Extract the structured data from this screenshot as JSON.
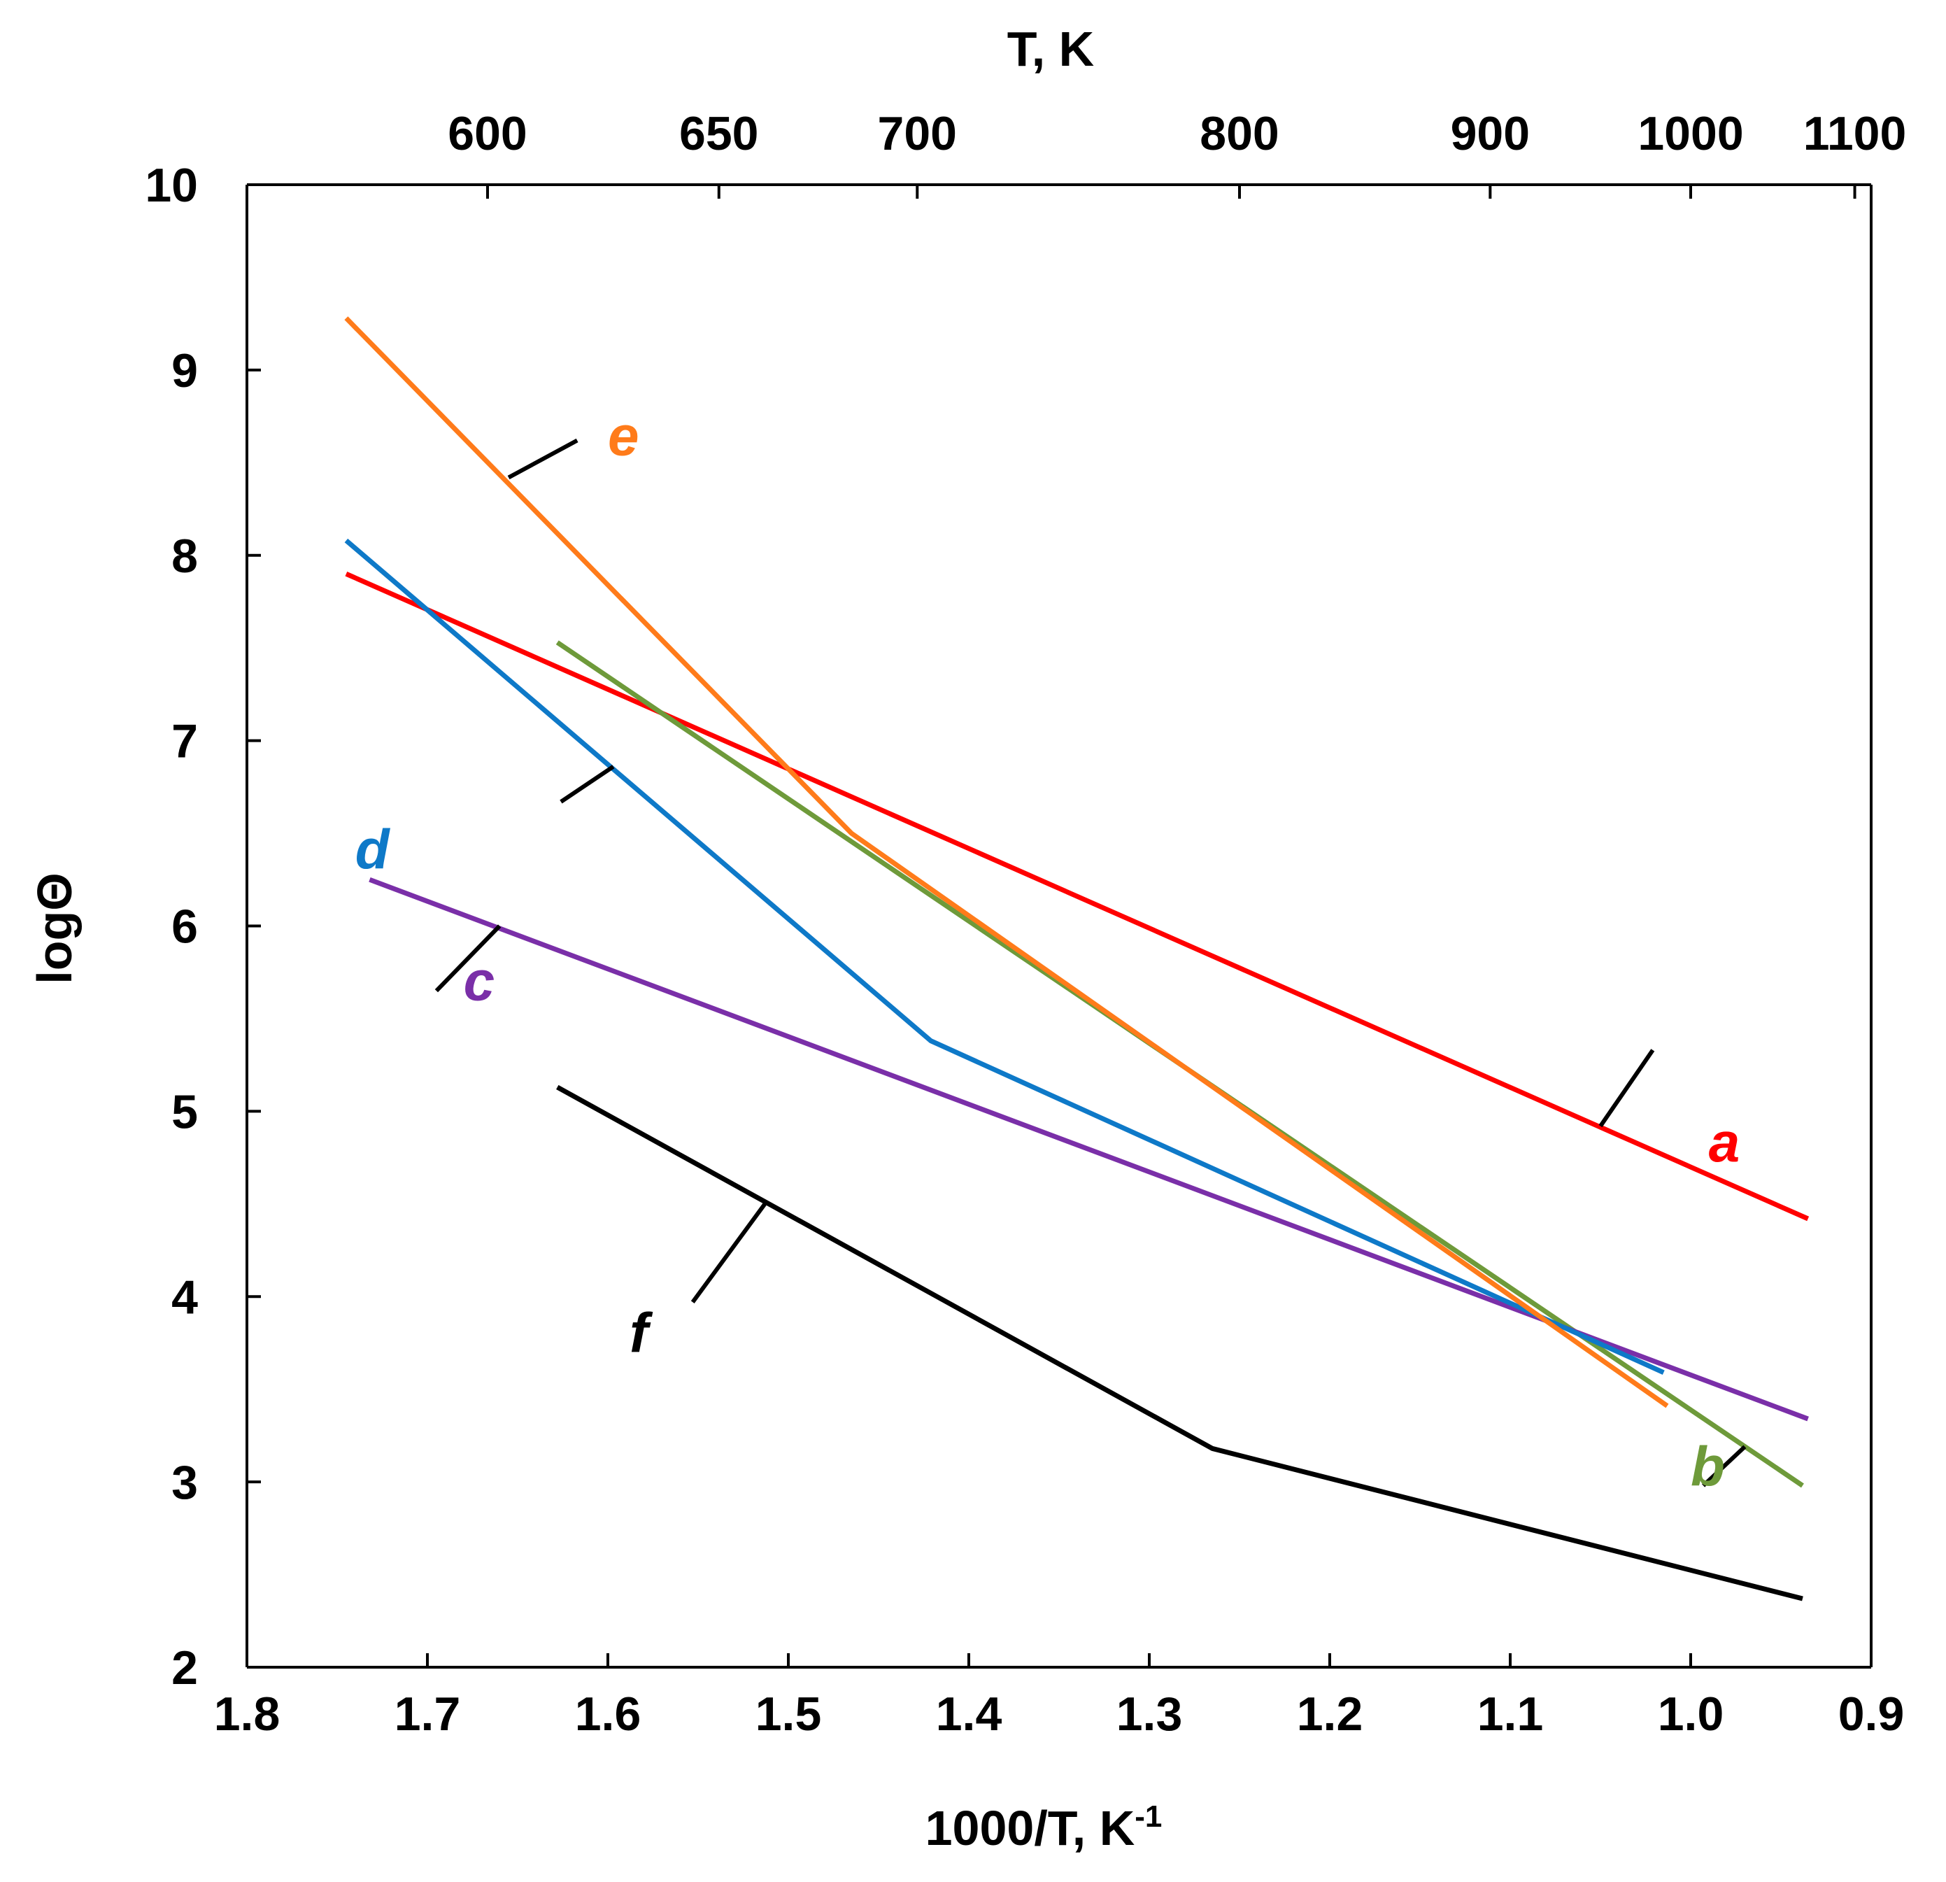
{
  "chart_data": {
    "type": "line",
    "xlabel": "1000/T, K",
    "xlabel_sup": "-1",
    "ylabel": "logΘ",
    "x2label": "T, K",
    "xlim": [
      1.8,
      0.9
    ],
    "ylim": [
      2,
      10
    ],
    "x_ticks": [
      "1.8",
      "1.7",
      "1.6",
      "1.5",
      "1.4",
      "1.3",
      "1.2",
      "1.1",
      "1.0",
      "0.9"
    ],
    "y_ticks": [
      "2",
      "3",
      "4",
      "5",
      "6",
      "7",
      "8",
      "9",
      "10"
    ],
    "top_ticks": [
      600,
      650,
      700,
      800,
      900,
      1000,
      1100
    ],
    "series": [
      {
        "name": "a",
        "color": "#ff0000",
        "x": [
          1.745,
          0.935
        ],
        "y": [
          7.9,
          4.42
        ],
        "label_pos": [
          0.99,
          4.73
        ],
        "leader": [
          [
            1.05,
            4.92
          ],
          [
            1.021,
            5.33
          ]
        ]
      },
      {
        "name": "b",
        "color": "#6e9a3a",
        "x": [
          1.628,
          0.938
        ],
        "y": [
          7.53,
          2.98
        ],
        "label_pos": [
          1.0,
          2.98
        ],
        "leader": [
          [
            0.97,
            3.19
          ],
          [
            0.993,
            2.98
          ]
        ]
      },
      {
        "name": "c",
        "color": "#7a2fa8",
        "x": [
          1.732,
          0.935
        ],
        "y": [
          6.25,
          3.34
        ],
        "label_pos": [
          1.68,
          5.6
        ],
        "leader": [
          [
            1.66,
            6.0
          ],
          [
            1.695,
            5.65
          ]
        ]
      },
      {
        "name": "d",
        "color": "#0e79c8",
        "x": [
          1.745,
          1.421,
          1.015
        ],
        "y": [
          8.08,
          5.38,
          3.59
        ],
        "label_pos": [
          1.74,
          6.31
        ],
        "leader": [
          [
            1.597,
            6.86
          ],
          [
            1.626,
            6.67
          ]
        ]
      },
      {
        "name": "e",
        "color": "#ff7b1a",
        "x": [
          1.745,
          1.465,
          1.013
        ],
        "y": [
          9.28,
          6.5,
          3.41
        ],
        "label_pos": [
          1.6,
          8.54
        ],
        "leader": [
          [
            1.655,
            8.42
          ],
          [
            1.617,
            8.62
          ]
        ]
      },
      {
        "name": "f",
        "color": "#000000",
        "x": [
          1.628,
          1.265,
          0.938
        ],
        "y": [
          5.13,
          3.18,
          2.37
        ],
        "label_pos": [
          1.588,
          3.7
        ],
        "leader": [
          [
            1.513,
            4.5
          ],
          [
            1.553,
            3.97
          ]
        ]
      }
    ]
  }
}
